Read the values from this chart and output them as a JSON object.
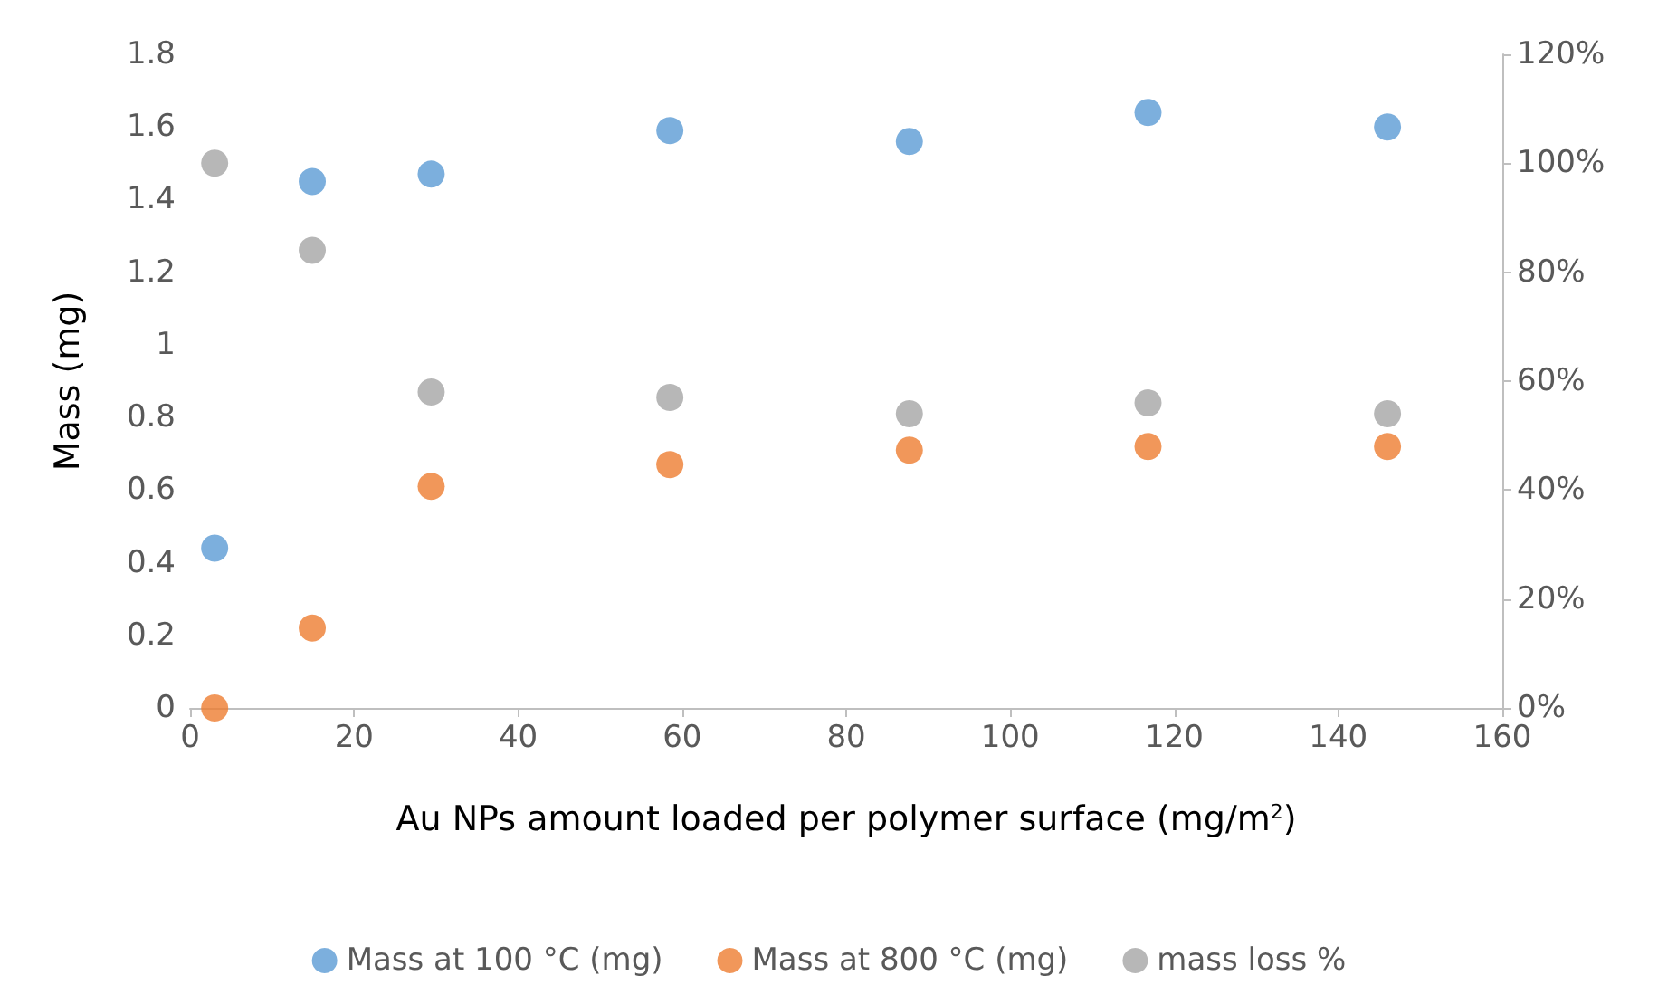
{
  "chart_data": {
    "type": "scatter",
    "xlabel": "Au NPs amount loaded per polymer surface (mg/m$^{2}$)",
    "ylabel": "Mass (mg)",
    "xlim": [
      0,
      160
    ],
    "xticks": [
      0,
      20,
      40,
      60,
      80,
      100,
      120,
      140,
      160
    ],
    "ylim": [
      0,
      1.8
    ],
    "yticks": [
      0,
      0.2,
      0.4,
      0.6,
      0.8,
      1,
      1.2,
      1.4,
      1.6,
      1.8
    ],
    "y2lim": [
      0,
      120
    ],
    "y2ticks": [
      {
        "value": 0,
        "label": "0%"
      },
      {
        "value": 20,
        "label": "20%"
      },
      {
        "value": 40,
        "label": "40%"
      },
      {
        "value": 60,
        "label": "60%"
      },
      {
        "value": 80,
        "label": "80%"
      },
      {
        "value": 100,
        "label": "100%"
      },
      {
        "value": 120,
        "label": "120%"
      }
    ],
    "x": [
      3,
      14.9,
      29.4,
      58.5,
      87.7,
      116.8,
      146
    ],
    "series": [
      {
        "name": "Mass at 100 °C (mg)",
        "color": "#5b9bd5",
        "values": [
          0.44,
          1.45,
          1.47,
          1.59,
          1.56,
          1.64,
          1.6
        ]
      },
      {
        "name": "Mass at 800 °C (mg)",
        "color": "#ed7d31",
        "values": [
          0,
          0.22,
          0.61,
          0.67,
          0.71,
          0.72,
          0.72
        ]
      },
      {
        "name": "mass loss %",
        "color": "#a5a5a5",
        "axis": "y2",
        "values": [
          100,
          84,
          58,
          57,
          54,
          56,
          54
        ]
      }
    ],
    "marker": "circle",
    "legend": "bottom",
    "grid": false
  }
}
